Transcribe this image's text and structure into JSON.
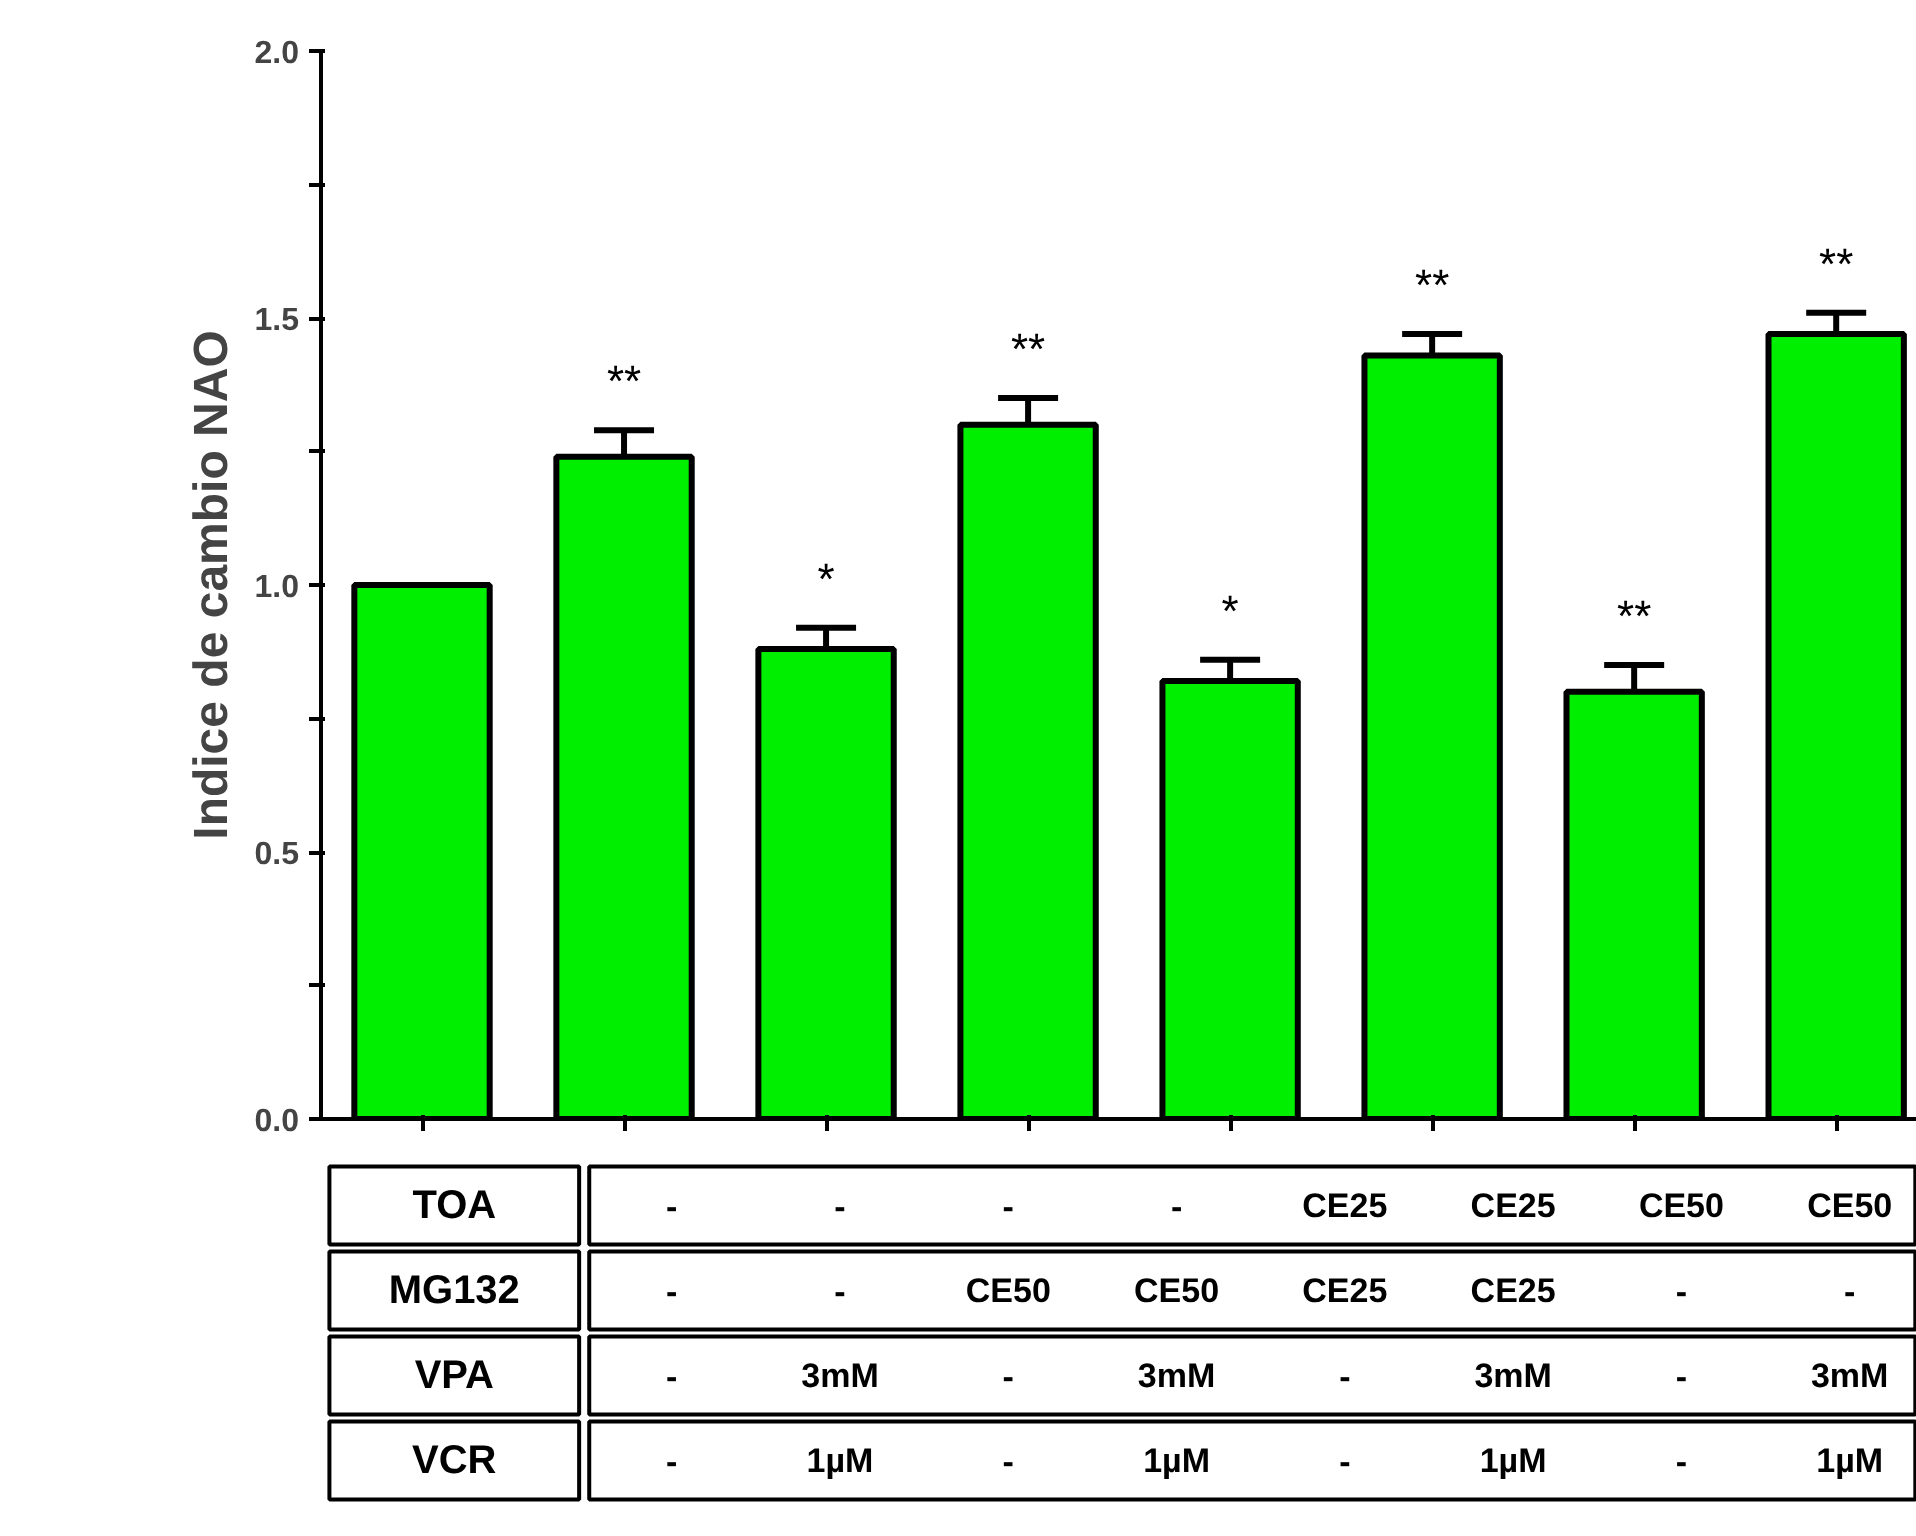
{
  "chart_data": {
    "type": "bar",
    "ylabel": "Indice de cambio NAO",
    "categories": [
      null,
      null,
      null,
      null,
      null,
      null,
      null,
      null
    ],
    "values": [
      1.0,
      1.24,
      0.88,
      1.3,
      0.82,
      1.43,
      0.8,
      1.47
    ],
    "errors": [
      null,
      0.05,
      0.04,
      0.05,
      0.04,
      0.04,
      0.05,
      0.04
    ],
    "value_labels": [
      null,
      "**",
      "*",
      "**",
      "*",
      "**",
      "**",
      "**"
    ],
    "color": "#00ee00",
    "ylim": [
      0,
      2
    ],
    "yticks": [
      {
        "value": 0,
        "label": "0.0"
      },
      {
        "value": 0.25,
        "label": null
      },
      0.5,
      {
        "value": 0.75,
        "label": null
      },
      {
        "value": 1,
        "label": "1.0"
      },
      {
        "value": 1.25,
        "label": null
      },
      1.5,
      {
        "value": 1.75,
        "label": null
      },
      {
        "value": 2,
        "label": "2.0"
      }
    ],
    "grid": false,
    "annotations": [
      "TOA",
      "-",
      "-",
      "-",
      "-",
      "CE25",
      "CE25",
      "CE50",
      "CE50",
      "MG132",
      "-",
      "-",
      "CE50",
      "CE50",
      "CE25",
      "CE25",
      "-",
      "-",
      "VPA",
      "-",
      "3mM",
      "-",
      "3mM",
      "-",
      "3mM",
      "-",
      "3mM",
      "VCR",
      "-",
      "1µM",
      "-",
      "1µM",
      "-",
      "1µM",
      "-",
      "1µM"
    ]
  }
}
